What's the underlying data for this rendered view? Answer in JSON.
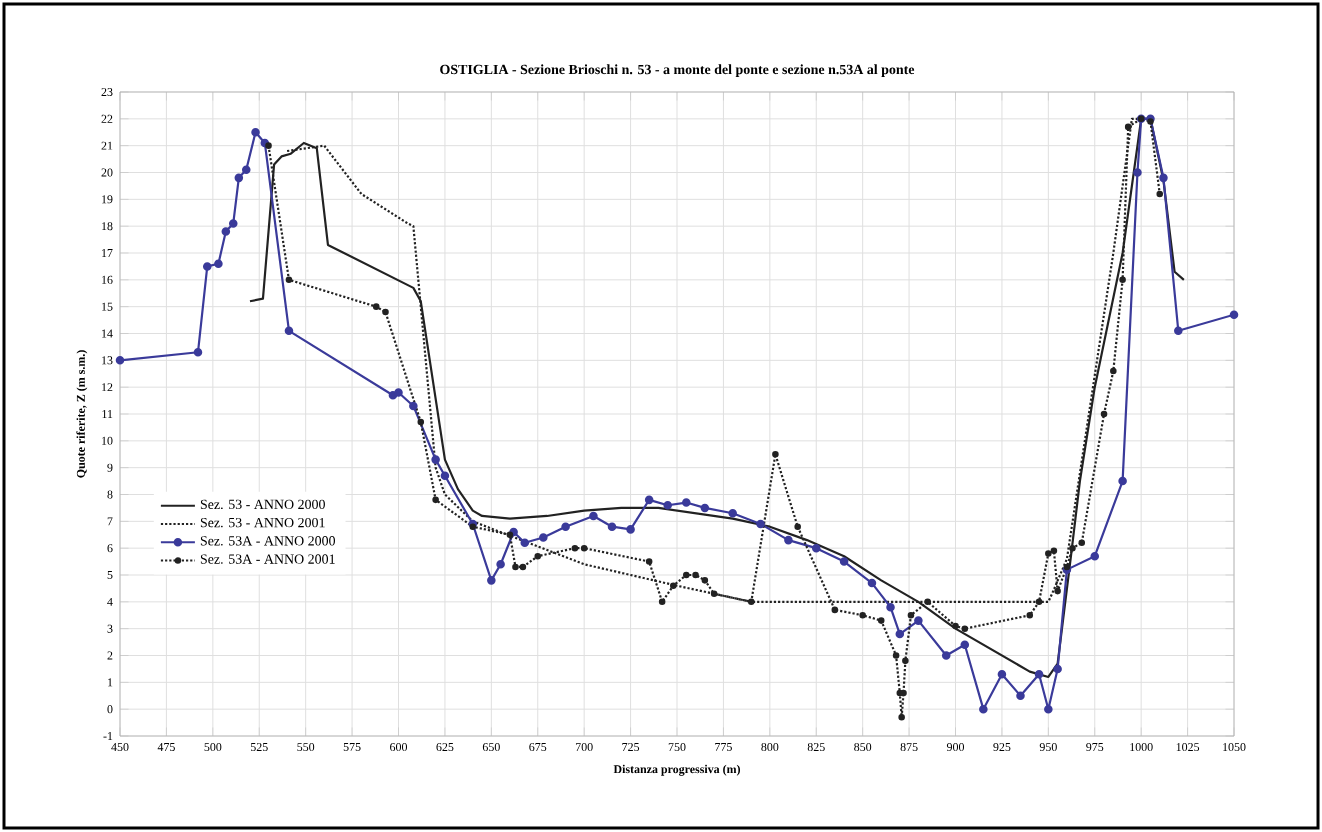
{
  "chart_data": {
    "type": "line",
    "title": "OSTIGLIA - Sezione Brioschi n. 53 - a monte del ponte e sezione n.53A al ponte",
    "xlabel": "Distanza progressiva (m)",
    "ylabel": "Quote riferite, Z (m s.m.)",
    "xlim": [
      450,
      1050
    ],
    "ylim": [
      -1,
      23
    ],
    "xticks": [
      450,
      475,
      500,
      525,
      550,
      575,
      600,
      625,
      650,
      675,
      700,
      725,
      750,
      775,
      800,
      825,
      850,
      875,
      900,
      925,
      950,
      975,
      1000,
      1025,
      1050
    ],
    "yticks": [
      -1,
      0,
      1,
      2,
      3,
      4,
      5,
      6,
      7,
      8,
      9,
      10,
      11,
      12,
      13,
      14,
      15,
      16,
      17,
      18,
      19,
      20,
      21,
      22,
      23
    ],
    "grid": true,
    "legend": "bottom left",
    "series": [
      {
        "name": "Sez. 53 - ANNO 2000",
        "color": "#222222",
        "line_style": "solid",
        "marker": "none",
        "x": [
          520,
          527,
          533,
          537,
          542,
          549,
          556,
          562,
          608,
          612,
          625,
          632,
          640,
          645,
          660,
          680,
          700,
          720,
          740,
          760,
          780,
          800,
          820,
          840,
          860,
          880,
          900,
          920,
          940,
          950,
          955,
          962,
          967,
          975,
          990,
          1000,
          1005,
          1012,
          1018,
          1023
        ],
        "values": [
          15.2,
          15.3,
          20.3,
          20.6,
          20.7,
          21.1,
          20.9,
          17.3,
          15.7,
          15.2,
          9.3,
          8.2,
          7.4,
          7.2,
          7.1,
          7.2,
          7.4,
          7.5,
          7.5,
          7.3,
          7.1,
          6.8,
          6.3,
          5.7,
          4.8,
          4.0,
          3.0,
          2.2,
          1.4,
          1.2,
          1.7,
          5.6,
          8.5,
          12,
          17,
          22,
          22,
          19.7,
          16.3,
          16
        ]
      },
      {
        "name": "Sez. 53 - ANNO 2001",
        "color": "#222222",
        "line_style": "dotted",
        "marker": "none",
        "x": [
          540,
          560,
          580,
          605,
          608,
          620,
          625,
          640,
          700,
          750,
          790,
          870,
          950,
          952,
          960,
          985,
          995,
          1005
        ],
        "values": [
          20.8,
          21.0,
          19.2,
          18.1,
          18,
          9,
          8,
          7.0,
          5.4,
          4.6,
          4.0,
          4.0,
          4.0,
          4.3,
          5.6,
          17,
          22,
          22
        ]
      },
      {
        "name": "Sez. 53A - ANNO 2000",
        "color": "#3a3a9a",
        "line_style": "solid",
        "marker": "circle",
        "x": [
          450,
          492,
          497,
          503,
          507,
          511,
          514,
          518,
          523,
          528,
          541,
          597,
          600,
          608,
          620,
          625,
          640,
          650,
          655,
          662,
          668,
          678,
          690,
          705,
          715,
          725,
          735,
          745,
          755,
          765,
          780,
          795,
          810,
          825,
          840,
          855,
          865,
          870,
          880,
          895,
          905,
          915,
          925,
          935,
          945,
          950,
          955,
          960,
          975,
          990,
          998,
          1000,
          1005,
          1012,
          1020,
          1050
        ],
        "values": [
          13,
          13.3,
          16.5,
          16.6,
          17.8,
          18.1,
          19.8,
          20.1,
          21.5,
          21.1,
          14.1,
          11.7,
          11.8,
          11.3,
          9.3,
          8.7,
          6.9,
          4.8,
          5.4,
          6.6,
          6.2,
          6.4,
          6.8,
          7.2,
          6.8,
          6.7,
          7.8,
          7.6,
          7.7,
          7.5,
          7.3,
          6.9,
          6.3,
          6.0,
          5.5,
          4.7,
          3.8,
          2.8,
          3.3,
          2.0,
          2.4,
          0,
          1.3,
          0.5,
          1.3,
          0,
          1.5,
          5.2,
          5.7,
          8.5,
          20,
          22,
          22,
          19.8,
          14.1,
          14.7
        ]
      },
      {
        "name": "Sez. 53A - ANNO 2001",
        "color": "#222222",
        "line_style": "dotted",
        "marker": "circle",
        "x": [
          530,
          541,
          588,
          593,
          612,
          620,
          640,
          660,
          663,
          667,
          675,
          695,
          700,
          735,
          742,
          748,
          755,
          760,
          765,
          770,
          790,
          803,
          815,
          835,
          850,
          860,
          868,
          870,
          871,
          872,
          873,
          876,
          885,
          900,
          905,
          940,
          945,
          950,
          953,
          955,
          960,
          963,
          968,
          980,
          985,
          990,
          993,
          1000,
          1005,
          1010
        ],
        "values": [
          21.0,
          16.0,
          15.0,
          14.8,
          10.7,
          7.8,
          6.8,
          6.5,
          5.3,
          5.3,
          5.7,
          6.0,
          6.0,
          5.5,
          4.0,
          4.6,
          5.0,
          5.0,
          4.8,
          4.3,
          4.0,
          9.5,
          6.8,
          3.7,
          3.5,
          3.3,
          2.0,
          0.6,
          -0.3,
          0.6,
          1.8,
          3.5,
          4.0,
          3.1,
          3.0,
          3.5,
          4.0,
          5.8,
          5.9,
          4.4,
          5.3,
          6.0,
          6.2,
          11.0,
          12.6,
          16,
          21.7,
          22,
          21.9,
          19.2
        ]
      }
    ]
  }
}
